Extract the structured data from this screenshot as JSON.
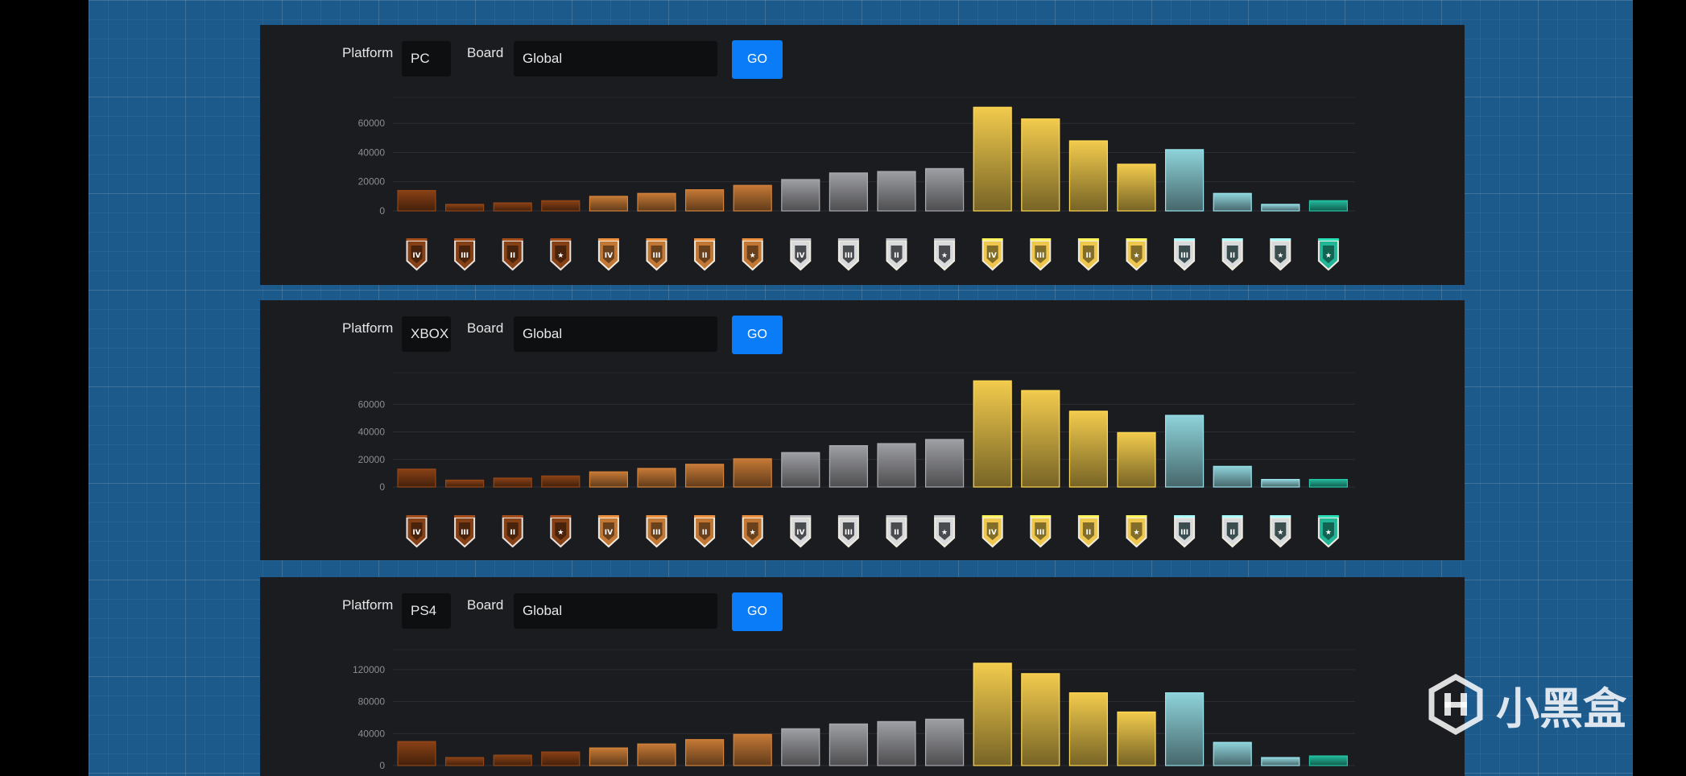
{
  "panels": [
    {
      "id": "pc",
      "platform_label": "Platform",
      "platform_value": "PC",
      "board_label": "Board",
      "board_value": "Global",
      "go_label": "GO",
      "chart_data": {
        "type": "bar",
        "categories": [
          "Copper IV",
          "Copper III",
          "Copper II",
          "Copper I",
          "Bronze IV",
          "Bronze III",
          "Bronze II",
          "Bronze I",
          "Silver IV",
          "Silver III",
          "Silver II",
          "Silver I",
          "Gold IV",
          "Gold III",
          "Gold II",
          "Gold I",
          "Platinum III",
          "Platinum II",
          "Platinum I",
          "Diamond"
        ],
        "values": [
          14000,
          4500,
          5500,
          7000,
          10000,
          12000,
          14500,
          17500,
          21500,
          26000,
          27000,
          29000,
          71000,
          63000,
          48000,
          32000,
          42000,
          12000,
          4500,
          7000
        ],
        "yticks": [
          "0",
          "20000",
          "40000",
          "60000"
        ],
        "ytick_values": [
          0,
          20000,
          40000,
          60000
        ],
        "ylim": [
          0,
          75000
        ]
      }
    },
    {
      "id": "xbox",
      "platform_label": "Platform",
      "platform_value": "XBOX",
      "board_label": "Board",
      "board_value": "Global",
      "go_label": "GO",
      "chart_data": {
        "type": "bar",
        "categories": [
          "Copper IV",
          "Copper III",
          "Copper II",
          "Copper I",
          "Bronze IV",
          "Bronze III",
          "Bronze II",
          "Bronze I",
          "Silver IV",
          "Silver III",
          "Silver II",
          "Silver I",
          "Gold IV",
          "Gold III",
          "Gold II",
          "Gold I",
          "Platinum III",
          "Platinum II",
          "Platinum I",
          "Diamond"
        ],
        "values": [
          13000,
          5000,
          6500,
          8000,
          11000,
          13500,
          16500,
          20500,
          25000,
          30000,
          31500,
          34500,
          77000,
          70000,
          55000,
          39500,
          52000,
          15000,
          5500,
          5500
        ],
        "yticks": [
          "0",
          "20000",
          "40000",
          "60000"
        ],
        "ytick_values": [
          0,
          20000,
          40000,
          60000
        ],
        "ylim": [
          0,
          80000
        ]
      }
    },
    {
      "id": "ps4",
      "platform_label": "Platform",
      "platform_value": "PS4",
      "board_label": "Board",
      "board_value": "Global",
      "go_label": "GO",
      "chart_data": {
        "type": "bar",
        "categories": [
          "Copper IV",
          "Copper III",
          "Copper II",
          "Copper I",
          "Bronze IV",
          "Bronze III",
          "Bronze II",
          "Bronze I",
          "Silver IV",
          "Silver III",
          "Silver II",
          "Silver I",
          "Gold IV",
          "Gold III",
          "Gold II",
          "Gold I",
          "Platinum III",
          "Platinum II",
          "Platinum I",
          "Diamond"
        ],
        "values": [
          30000,
          10000,
          13000,
          17000,
          22000,
          27000,
          32500,
          39000,
          46000,
          52000,
          55000,
          58000,
          128000,
          115000,
          91000,
          67000,
          91000,
          29000,
          10000,
          12000
        ],
        "yticks": [
          "0",
          "40000",
          "80000",
          "120000"
        ],
        "ytick_values": [
          0,
          40000,
          80000,
          120000
        ],
        "ylim": [
          0,
          140000
        ]
      }
    }
  ],
  "rank_colors": {
    "copper": "#7a3a14",
    "bronze": "#b06c30",
    "silver": "#8d8e92",
    "gold": "#d8b545",
    "platinum": "#7fbcc3",
    "diamond": "#1fa58a"
  },
  "rank_icons": [
    "copper-iv-icon",
    "copper-iii-icon",
    "copper-ii-icon",
    "copper-i-icon",
    "bronze-iv-icon",
    "bronze-iii-icon",
    "bronze-ii-icon",
    "bronze-i-icon",
    "silver-iv-icon",
    "silver-iii-icon",
    "silver-ii-icon",
    "silver-i-icon",
    "gold-iv-icon",
    "gold-iii-icon",
    "gold-ii-icon",
    "gold-i-icon",
    "platinum-iii-icon",
    "platinum-ii-icon",
    "platinum-i-icon",
    "diamond-icon"
  ],
  "watermark": {
    "text": "小黑盒",
    "icon": "heybox-logo-icon"
  }
}
